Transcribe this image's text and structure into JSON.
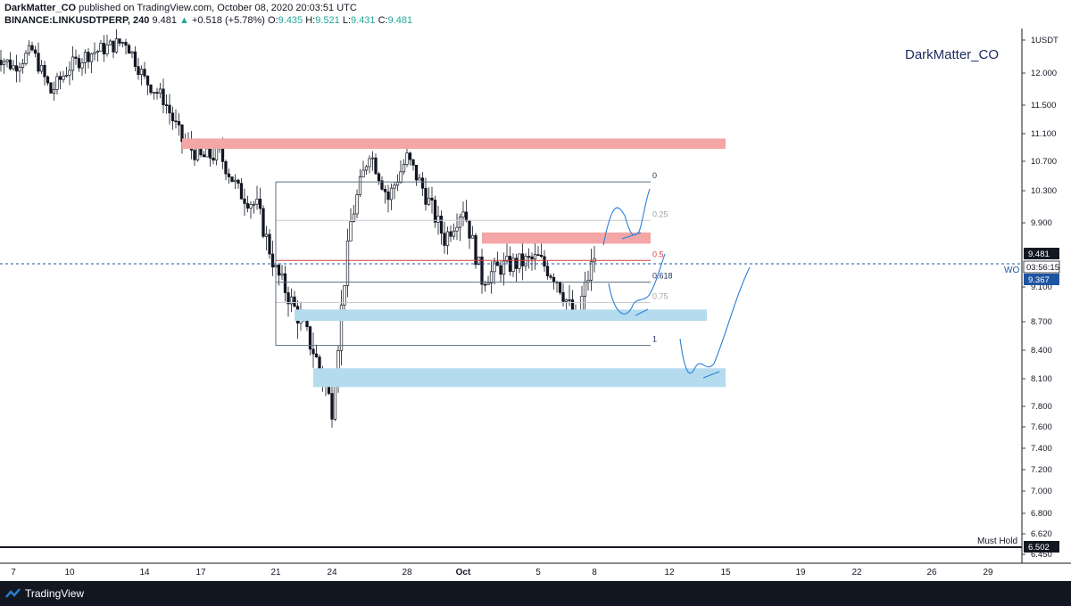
{
  "header": {
    "author": "DarkMatter_CO",
    "published": "published on TradingView.com, October 08, 2020 20:03:51 UTC",
    "symbol": "BINANCE:LINKUSDTPERP, 240",
    "last": "9.481",
    "change": "+0.518 (+5.78%)",
    "o_label": "O:",
    "o": "9.435",
    "h_label": "H:",
    "h": "9.521",
    "l_label": "L:",
    "l": "9.431",
    "c_label": "C:",
    "c": "9.481"
  },
  "watermark": "DarkMatter_CO",
  "footer": {
    "brand": "TradingView"
  },
  "colors": {
    "supply_zone": "#f4a6a6",
    "demand_zone": "#b5dbef",
    "fib_line": "#5d6d7e",
    "fib_05": "#d13d3d",
    "drawing": "#2a7fd4",
    "candle": "#131722",
    "price_tag_dark": "#131722",
    "price_tag_blue": "#1e55a3",
    "axis_bg": "#ffffff"
  },
  "chart_data": {
    "type": "candlestick",
    "symbol": "BINANCE:LINKUSDTPERP",
    "interval": "240",
    "currency": "USDT",
    "y_axis_ticks": [
      "1",
      "12.000",
      "11.500",
      "11.100",
      "10.700",
      "10.300",
      "9.900",
      "9.100",
      "8.700",
      "8.400",
      "8.100",
      "7.800",
      "7.600",
      "7.400",
      "7.200",
      "7.000",
      "6.800",
      "6.620",
      "6.450"
    ],
    "x_axis_ticks": [
      "7",
      "10",
      "14",
      "17",
      "21",
      "24",
      "28",
      "Oct",
      "5",
      "8",
      "12",
      "15",
      "19",
      "22",
      "26",
      "29"
    ],
    "current_price": 9.481,
    "countdown": "03:56:15",
    "alt_price": 9.367,
    "must_hold_price": 6.502,
    "annotations": {
      "wo": "WO",
      "must_hold": "Must Hold"
    },
    "fib_levels": [
      {
        "label": "0",
        "price": 10.42
      },
      {
        "label": "0.25",
        "price": 9.93
      },
      {
        "label": "0.5",
        "price": 9.43
      },
      {
        "label": "0.618",
        "price": 9.16
      },
      {
        "label": "0.75",
        "price": 8.92
      },
      {
        "label": "1",
        "price": 8.45
      }
    ],
    "zones": [
      {
        "kind": "supply",
        "from": "Sep 16",
        "to": "Oct 15",
        "top": 11.03,
        "bottom": 10.88
      },
      {
        "kind": "supply",
        "from": "Oct 2",
        "to": "Oct 11",
        "top": 9.78,
        "bottom": 9.64
      },
      {
        "kind": "demand",
        "from": "Sep 22",
        "to": "Oct 14",
        "top": 8.84,
        "bottom": 8.71
      },
      {
        "kind": "demand",
        "from": "Sep 23",
        "to": "Oct 15",
        "top": 8.21,
        "bottom": 8.01
      }
    ],
    "close_path": [
      [
        "Sep 6",
        12.3
      ],
      [
        "Sep 7",
        12.1
      ],
      [
        "Sep 8",
        12.35
      ],
      [
        "Sep 9",
        11.7
      ],
      [
        "Sep 10",
        12.1
      ],
      [
        "Sep 11",
        12.3
      ],
      [
        "Sep 12",
        12.4
      ],
      [
        "Sep 13",
        12.5
      ],
      [
        "Sep 14",
        11.9
      ],
      [
        "Sep 15",
        11.6
      ],
      [
        "Sep 16",
        11.0
      ],
      [
        "Sep 17",
        10.75
      ],
      [
        "Sep 18",
        10.8
      ],
      [
        "Sep 19",
        10.3
      ],
      [
        "Sep 20",
        10.1
      ],
      [
        "Sep 21",
        9.3
      ],
      [
        "Sep 22",
        8.85
      ],
      [
        "Sep 23",
        8.4
      ],
      [
        "Sep 24",
        7.8
      ],
      [
        "Sep 25",
        9.9
      ],
      [
        "Sep 26",
        10.85
      ],
      [
        "Sep 27",
        10.2
      ],
      [
        "Sep 28",
        10.75
      ],
      [
        "Sep 29",
        10.25
      ],
      [
        "Sep 30",
        9.7
      ],
      [
        "Oct 1",
        10.1
      ],
      [
        "Oct 2",
        9.2
      ],
      [
        "Oct 3",
        9.35
      ],
      [
        "Oct 4",
        9.4
      ],
      [
        "Oct 5",
        9.45
      ],
      [
        "Oct 6",
        9.2
      ],
      [
        "Oct 7",
        8.7
      ],
      [
        "Oct 8",
        9.48
      ]
    ]
  }
}
